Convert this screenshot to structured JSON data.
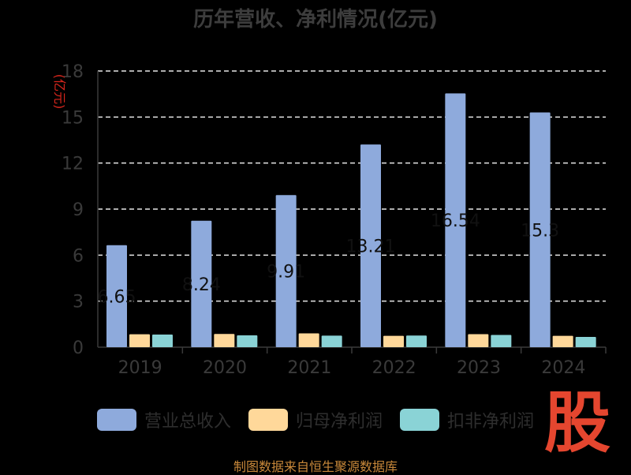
{
  "title": "历年营收、净利情况(亿元)",
  "source_text": "制图数据来自恒生聚源数据库",
  "logo_text": "股",
  "chart_data": {
    "type": "bar",
    "title": "历年营收、净利情况(亿元)",
    "ylabel": "(亿元)",
    "xlabel": "",
    "ylim": [
      0,
      18
    ],
    "yticks": [
      0,
      3,
      6,
      9,
      12,
      15,
      18
    ],
    "grid": true,
    "legend": "bottom",
    "categories": [
      "2019",
      "2020",
      "2021",
      "2022",
      "2023",
      "2024"
    ],
    "series": [
      {
        "name": "营业总收入",
        "color": "#8eaadc",
        "values": [
          6.65,
          8.24,
          9.91,
          13.21,
          16.54,
          15.3
        ]
      },
      {
        "name": "归母净利润",
        "color": "#ffd89a",
        "values": [
          0.84,
          0.86,
          0.9,
          0.74,
          0.85,
          0.74
        ]
      },
      {
        "name": "扣非净利润",
        "color": "#8ad3d6",
        "values": [
          0.82,
          0.77,
          0.75,
          0.76,
          0.8,
          0.67
        ]
      }
    ],
    "data_labels": [
      "6.65",
      "8.24",
      "9.91",
      "13.21",
      "16.54",
      "15.3"
    ]
  }
}
